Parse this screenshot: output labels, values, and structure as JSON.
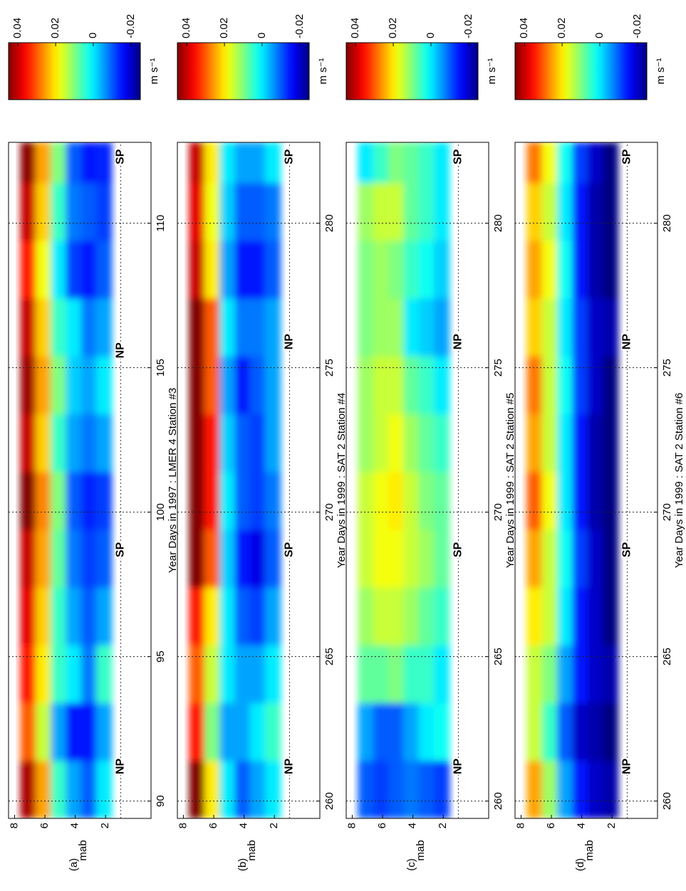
{
  "chart_data": [
    {
      "type": "heatmap",
      "panel_label": "(a)",
      "xlabel": "Year Days in 1997 : LMER 4 Station #3",
      "ylabel": "mab",
      "xlim": [
        89.4,
        112.8
      ],
      "xticks": [
        90,
        95,
        100,
        105,
        110
      ],
      "ylim": [
        -1.0,
        8.4
      ],
      "yticks": [
        2,
        4,
        6,
        8
      ],
      "grid": "x",
      "x_edges": [
        89.4,
        91.4,
        93.4,
        95.4,
        97.4,
        99.4,
        101.4,
        103.4,
        105.4,
        107.4,
        109.4,
        111.4,
        112.8
      ],
      "y_edges": [
        7.6,
        6.6,
        5.6,
        4.6,
        3.6,
        2.6,
        1.6
      ],
      "values": [
        [
          0.042,
          0.03,
          0.035,
          0.038,
          0.04,
          0.045,
          0.04,
          0.043,
          0.04,
          0.035,
          0.04,
          0.044
        ],
        [
          0.025,
          0.015,
          0.02,
          0.022,
          0.025,
          0.027,
          0.022,
          0.025,
          0.022,
          0.018,
          0.022,
          0.025
        ],
        [
          0.005,
          -0.005,
          0.005,
          0.005,
          0.008,
          0.01,
          0.005,
          0.01,
          0.005,
          0.0,
          0.005,
          0.01
        ],
        [
          -0.005,
          -0.015,
          0.0,
          -0.005,
          -0.008,
          -0.01,
          -0.005,
          -0.002,
          0.0,
          -0.012,
          -0.008,
          -0.01
        ],
        [
          -0.01,
          -0.015,
          -0.008,
          -0.01,
          -0.012,
          -0.014,
          -0.008,
          -0.005,
          -0.008,
          -0.015,
          -0.01,
          -0.015
        ],
        [
          0.0,
          -0.005,
          0.005,
          -0.005,
          -0.01,
          -0.012,
          -0.005,
          0.0,
          -0.005,
          -0.01,
          -0.012,
          -0.014
        ]
      ],
      "reference_line": 1.0,
      "annotations": [
        {
          "text": "NP",
          "x": 91.2,
          "y": 1.0,
          "color": "#2e7d4f"
        },
        {
          "text": "SP",
          "x": 98.7,
          "y": 1.0,
          "color": "#d9452b"
        },
        {
          "text": "NP",
          "x": 105.6,
          "y": 1.0,
          "color": "#2e7d4f"
        },
        {
          "text": "SP",
          "x": 112.3,
          "y": 1.0,
          "color": "#d9452b"
        }
      ],
      "colorbar": {
        "colormap": "jet",
        "clim": [
          -0.025,
          0.045
        ],
        "ticks": [
          0.04,
          0.02,
          0,
          -0.02
        ],
        "label": "m s⁻¹"
      }
    },
    {
      "type": "heatmap",
      "panel_label": "(b)",
      "xlabel": "Year Days in 1999 : SAT 2 Station #4",
      "ylabel": "mab",
      "xlim": [
        259.4,
        282.8
      ],
      "xticks": [
        260,
        265,
        270,
        275,
        280
      ],
      "ylim": [
        -1.0,
        8.4
      ],
      "yticks": [
        2,
        4,
        6,
        8
      ],
      "grid": "x",
      "x_edges": [
        259.4,
        261.4,
        263.4,
        265.4,
        267.4,
        269.4,
        271.4,
        273.4,
        275.4,
        277.4,
        279.4,
        281.4,
        282.8
      ],
      "y_edges": [
        7.6,
        6.6,
        5.6,
        4.6,
        3.6,
        2.6,
        1.6
      ],
      "values": [
        [
          0.045,
          0.035,
          0.03,
          0.035,
          0.048,
          0.05,
          0.05,
          0.048,
          0.05,
          0.04,
          0.038,
          0.04
        ],
        [
          0.02,
          0.01,
          0.015,
          0.02,
          0.03,
          0.035,
          0.035,
          0.03,
          0.03,
          0.02,
          0.018,
          0.02
        ],
        [
          0.0,
          -0.005,
          0.0,
          0.0,
          -0.002,
          0.0,
          -0.002,
          -0.005,
          0.0,
          -0.005,
          -0.002,
          0.0
        ],
        [
          -0.01,
          -0.005,
          -0.005,
          -0.01,
          -0.015,
          -0.01,
          -0.01,
          -0.015,
          -0.008,
          -0.015,
          -0.01,
          -0.005
        ],
        [
          -0.005,
          0.0,
          -0.005,
          -0.012,
          -0.018,
          -0.012,
          -0.012,
          -0.01,
          -0.008,
          -0.015,
          -0.01,
          -0.005
        ],
        [
          0.0,
          0.005,
          0.0,
          -0.005,
          -0.01,
          -0.008,
          -0.005,
          -0.005,
          -0.005,
          -0.01,
          -0.008,
          0.0
        ]
      ],
      "reference_line": 1.0,
      "annotations": [
        {
          "text": "NP",
          "x": 261.2,
          "y": 1.0,
          "color": "#2e7d4f"
        },
        {
          "text": "SP",
          "x": 268.7,
          "y": 1.0,
          "color": "#d9452b"
        },
        {
          "text": "NP",
          "x": 275.9,
          "y": 1.0,
          "color": "#2e7d4f"
        },
        {
          "text": "SP",
          "x": 282.3,
          "y": 1.0,
          "color": "#d9452b"
        }
      ],
      "colorbar": {
        "colormap": "jet",
        "clim": [
          -0.025,
          0.045
        ],
        "ticks": [
          0.04,
          0.02,
          0,
          -0.02
        ],
        "label": "m s⁻¹"
      }
    },
    {
      "type": "heatmap",
      "panel_label": "(c)",
      "xlabel": "Year Days in 1999 : SAT 2 Station #5",
      "ylabel": "mab",
      "xlim": [
        259.4,
        282.8
      ],
      "xticks": [
        260,
        265,
        270,
        275,
        280
      ],
      "ylim": [
        -1.0,
        8.4
      ],
      "yticks": [
        2,
        4,
        6,
        8
      ],
      "grid": "x",
      "x_edges": [
        259.4,
        261.4,
        263.4,
        265.4,
        267.4,
        269.4,
        271.4,
        273.4,
        275.4,
        277.4,
        279.4,
        281.4,
        282.8
      ],
      "y_edges": [
        7.6,
        6.6,
        5.6,
        4.6,
        3.6,
        2.6,
        1.6
      ],
      "values": [
        [
          -0.01,
          -0.005,
          0.008,
          0.012,
          0.015,
          0.015,
          0.012,
          0.012,
          0.01,
          0.01,
          0.012,
          0.0
        ],
        [
          -0.012,
          -0.01,
          0.008,
          0.015,
          0.018,
          0.018,
          0.015,
          0.015,
          0.012,
          0.012,
          0.015,
          0.005
        ],
        [
          -0.01,
          -0.01,
          0.01,
          0.015,
          0.018,
          0.02,
          0.018,
          0.015,
          0.012,
          0.01,
          0.015,
          0.01
        ],
        [
          -0.008,
          -0.005,
          0.005,
          0.012,
          0.015,
          0.015,
          0.012,
          0.008,
          0.0,
          0.005,
          0.008,
          0.008
        ],
        [
          -0.01,
          0.0,
          0.005,
          0.008,
          0.012,
          0.01,
          0.008,
          0.005,
          -0.002,
          0.002,
          0.005,
          0.005
        ],
        [
          -0.012,
          0.002,
          0.0,
          0.005,
          0.008,
          0.008,
          0.005,
          0.0,
          -0.005,
          -0.002,
          0.0,
          0.0
        ]
      ],
      "reference_line": 1.0,
      "annotations": [
        {
          "text": "NP",
          "x": 261.2,
          "y": 1.0,
          "color": "#2e7d4f"
        },
        {
          "text": "SP",
          "x": 268.7,
          "y": 1.0,
          "color": "#d9452b"
        },
        {
          "text": "NP",
          "x": 275.9,
          "y": 1.0,
          "color": "#2e7d4f"
        },
        {
          "text": "SP",
          "x": 282.3,
          "y": 1.0,
          "color": "#d9452b"
        }
      ],
      "colorbar": {
        "colormap": "jet",
        "clim": [
          -0.025,
          0.045
        ],
        "ticks": [
          0.04,
          0.02,
          0,
          -0.02
        ],
        "label": "m s⁻¹"
      }
    },
    {
      "type": "heatmap",
      "panel_label": "(d)",
      "xlabel": "Year Days in 1999 : SAT 2 Station #6",
      "ylabel": "mab",
      "xlim": [
        259.4,
        282.8
      ],
      "xticks": [
        260,
        265,
        270,
        275,
        280
      ],
      "ylim": [
        -1.0,
        8.4
      ],
      "yticks": [
        2,
        4,
        6,
        8
      ],
      "grid": "x",
      "x_edges": [
        259.4,
        261.4,
        263.4,
        265.4,
        267.4,
        269.4,
        271.4,
        273.4,
        275.4,
        277.4,
        279.4,
        281.4,
        282.8
      ],
      "y_edges": [
        7.6,
        6.6,
        5.6,
        4.6,
        3.6,
        2.6,
        1.6
      ],
      "values": [
        [
          0.025,
          0.015,
          0.015,
          0.02,
          0.025,
          0.03,
          0.025,
          0.028,
          0.022,
          0.025,
          0.022,
          0.028
        ],
        [
          0.012,
          0.005,
          0.01,
          0.015,
          0.015,
          0.018,
          0.015,
          0.015,
          0.015,
          0.018,
          0.015,
          0.018
        ],
        [
          -0.005,
          -0.01,
          -0.005,
          0.0,
          0.002,
          0.0,
          0.0,
          0.002,
          0.0,
          0.002,
          0.0,
          0.002
        ],
        [
          -0.015,
          -0.02,
          -0.015,
          -0.015,
          -0.012,
          -0.015,
          -0.015,
          -0.012,
          -0.012,
          -0.015,
          -0.015,
          -0.012
        ],
        [
          -0.02,
          -0.022,
          -0.02,
          -0.02,
          -0.02,
          -0.022,
          -0.022,
          -0.02,
          -0.02,
          -0.022,
          -0.022,
          -0.02
        ],
        [
          -0.022,
          -0.025,
          -0.022,
          -0.025,
          -0.025,
          -0.025,
          -0.025,
          -0.025,
          -0.022,
          -0.025,
          -0.025,
          -0.025
        ]
      ],
      "reference_line": 1.0,
      "annotations": [
        {
          "text": "NP",
          "x": 261.2,
          "y": 1.0,
          "color": "#2e7d4f"
        },
        {
          "text": "SP",
          "x": 268.7,
          "y": 1.0,
          "color": "#d9452b"
        },
        {
          "text": "NP",
          "x": 275.9,
          "y": 1.0,
          "color": "#2e7d4f"
        },
        {
          "text": "SP",
          "x": 282.3,
          "y": 1.0,
          "color": "#d9452b"
        }
      ],
      "colorbar": {
        "colormap": "jet",
        "clim": [
          -0.025,
          0.045
        ],
        "ticks": [
          0.04,
          0.02,
          0,
          -0.02
        ],
        "label": "m s⁻¹"
      }
    }
  ]
}
